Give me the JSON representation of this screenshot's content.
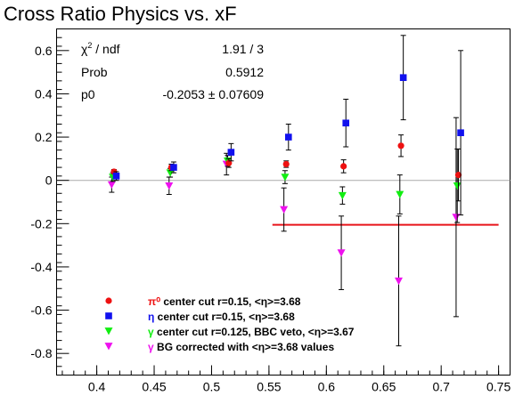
{
  "chart_data": {
    "type": "scatter",
    "title": "Cross Ratio Physics vs. xF",
    "xlabel": "",
    "ylabel": "",
    "xlim": [
      0.365,
      0.76
    ],
    "ylim": [
      -0.9,
      0.7
    ],
    "xticks": [
      0.4,
      0.45,
      0.5,
      0.55,
      0.6,
      0.65,
      0.7,
      0.75
    ],
    "xtick_labels": [
      "0.4",
      "0.45",
      "0.5",
      "0.55",
      "0.6",
      "0.65",
      "0.7",
      "0.75"
    ],
    "yticks": [
      0.6,
      0.4,
      0.2,
      0,
      -0.2,
      -0.4,
      -0.6,
      -0.8
    ],
    "ytick_labels": [
      "0.6",
      "0.4",
      "0.2",
      "0",
      "-0.2",
      "-0.4",
      "-0.6",
      "-0.8"
    ],
    "grid": false,
    "legend_position": "bottom-left",
    "zero_line": 0,
    "stats_box": {
      "rows": [
        {
          "label": "χ² / ndf",
          "value": "1.91 / 3"
        },
        {
          "label": "Prob",
          "value": "0.5912"
        },
        {
          "label": "p0",
          "value": "-0.2053 ± 0.07609"
        }
      ]
    },
    "fit_line": {
      "y": -0.2053,
      "x_range": [
        0.553,
        0.75
      ],
      "color": "#e8141a"
    },
    "series": [
      {
        "name": "π⁰ center cut r=0.15, <η>=3.68",
        "legend_symbol": "π⁰",
        "legend_text": " center cut r=0.15, <η>=3.68",
        "marker": "circle",
        "color": "#ee1111",
        "points": [
          {
            "x": 0.415,
            "y": 0.04,
            "err": 0.01
          },
          {
            "x": 0.465,
            "y": 0.06,
            "err": 0.015
          },
          {
            "x": 0.515,
            "y": 0.08,
            "err": 0.02
          },
          {
            "x": 0.565,
            "y": 0.075,
            "err": 0.015
          },
          {
            "x": 0.615,
            "y": 0.065,
            "err": 0.03
          },
          {
            "x": 0.665,
            "y": 0.16,
            "err": 0.05
          },
          {
            "x": 0.715,
            "y": 0.025,
            "err": 0.12
          }
        ]
      },
      {
        "name": "η center cut r=0.15, <η>=3.68",
        "legend_symbol": "η",
        "legend_text": " center cut r=0.15, <η>=3.68",
        "marker": "square",
        "color": "#1111ee",
        "points": [
          {
            "x": 0.417,
            "y": 0.02,
            "err": 0.02
          },
          {
            "x": 0.467,
            "y": 0.06,
            "err": 0.025
          },
          {
            "x": 0.517,
            "y": 0.13,
            "err": 0.04
          },
          {
            "x": 0.567,
            "y": 0.2,
            "err": 0.06
          },
          {
            "x": 0.617,
            "y": 0.265,
            "err": 0.11
          },
          {
            "x": 0.667,
            "y": 0.475,
            "err": 0.195
          },
          {
            "x": 0.717,
            "y": 0.22,
            "err": 0.38
          }
        ]
      },
      {
        "name": "γ center cut r=0.125, BBC veto, <η>=3.67",
        "legend_symbol": "γ",
        "legend_text": " center cut r=0.125, BBC veto, <η>=3.67",
        "marker": "triangle-down",
        "color": "#11ee11",
        "points": [
          {
            "x": 0.414,
            "y": 0.015,
            "err": 0.02
          },
          {
            "x": 0.464,
            "y": 0.035,
            "err": 0.02
          },
          {
            "x": 0.514,
            "y": 0.09,
            "err": 0.025
          },
          {
            "x": 0.564,
            "y": 0.015,
            "err": 0.03
          },
          {
            "x": 0.614,
            "y": -0.07,
            "err": 0.04
          },
          {
            "x": 0.664,
            "y": -0.065,
            "err": 0.09
          },
          {
            "x": 0.714,
            "y": -0.025,
            "err": 0.17
          }
        ]
      },
      {
        "name": "γ BG corrected with <η>=3.68 values",
        "legend_symbol": "γ",
        "legend_text": " BG corrected with <η>=3.68 values",
        "marker": "triangle-down",
        "color": "#ee11ee",
        "points": [
          {
            "x": 0.413,
            "y": -0.02,
            "err": 0.035
          },
          {
            "x": 0.463,
            "y": -0.025,
            "err": 0.04
          },
          {
            "x": 0.513,
            "y": 0.075,
            "err": 0.05
          },
          {
            "x": 0.563,
            "y": -0.135,
            "err": 0.1
          },
          {
            "x": 0.613,
            "y": -0.335,
            "err": 0.17
          },
          {
            "x": 0.663,
            "y": -0.465,
            "err": 0.3
          },
          {
            "x": 0.713,
            "y": -0.17,
            "err": 0.46
          }
        ]
      }
    ]
  }
}
